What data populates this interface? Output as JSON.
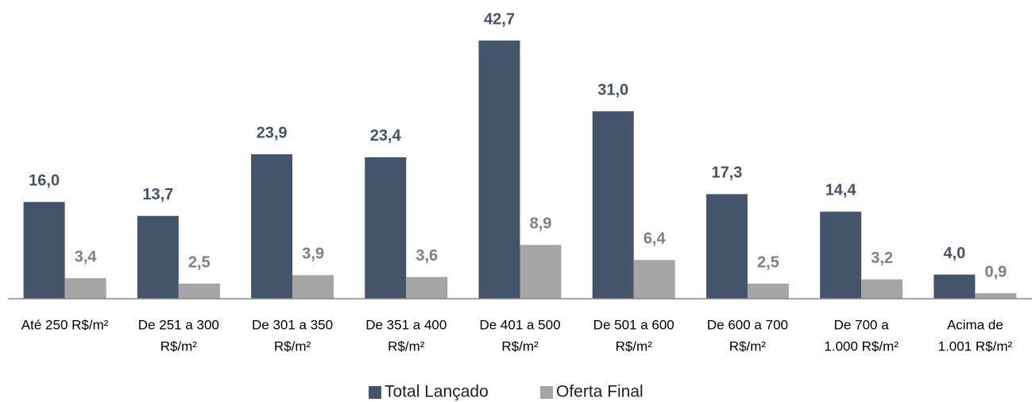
{
  "chart_data": {
    "type": "bar",
    "categories": [
      [
        "Até 250 R$/m²"
      ],
      [
        "De 251 a 300",
        "R$/m²"
      ],
      [
        "De 301 a 350",
        "R$/m²"
      ],
      [
        "De 351 a 400",
        "R$/m²"
      ],
      [
        "De 401 a 500",
        "R$/m²"
      ],
      [
        "De 501 a 600",
        "R$/m²"
      ],
      [
        "De 600 a 700",
        "R$/m²"
      ],
      [
        "De 700 a",
        "1.000 R$/m²"
      ],
      [
        "Acima de",
        "1.001 R$/m²"
      ]
    ],
    "series": [
      {
        "name": "Total Lançado",
        "color": "#44546a",
        "label_color": "#44546a",
        "values": [
          16.0,
          13.7,
          23.9,
          23.4,
          42.7,
          31.0,
          17.3,
          14.4,
          4.0
        ],
        "value_labels": [
          "16,0",
          "13,7",
          "23,9",
          "23,4",
          "42,7",
          "31,0",
          "17,3",
          "14,4",
          "4,0"
        ]
      },
      {
        "name": "Oferta Final",
        "color": "#a5a5a5",
        "label_color": "#7f7f7f",
        "values": [
          3.4,
          2.5,
          3.9,
          3.6,
          8.9,
          6.4,
          2.5,
          3.2,
          0.9
        ],
        "value_labels": [
          "3,4",
          "2,5",
          "3,9",
          "3,6",
          "8,9",
          "6,4",
          "2,5",
          "3,2",
          "0,9"
        ]
      }
    ],
    "ylim": [
      0,
      45
    ],
    "grid": false,
    "legend": "bottom"
  }
}
